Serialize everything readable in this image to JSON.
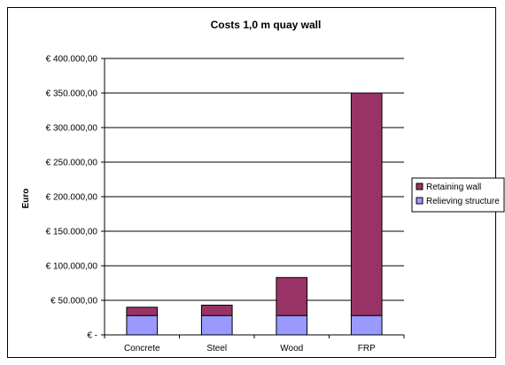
{
  "chart_data": {
    "type": "bar",
    "stacked": true,
    "title": "Costs 1,0 m quay wall",
    "xlabel": "",
    "ylabel": "Euro",
    "categories": [
      "Concrete",
      "Steel",
      "Wood",
      "FRP"
    ],
    "series": [
      {
        "name": "Relieving structure",
        "color": "#9999ff",
        "values": [
          28000,
          28000,
          28000,
          28000
        ]
      },
      {
        "name": "Retaining wall",
        "color": "#993366",
        "values": [
          12000,
          15000,
          55000,
          322000
        ]
      }
    ],
    "ylim": [
      0,
      400000
    ],
    "yticks": [
      0,
      50000,
      100000,
      150000,
      200000,
      250000,
      300000,
      350000,
      400000
    ],
    "ytick_labels": [
      "€ -",
      "€ 50.000,00",
      "€ 100.000,00",
      "€ 150.000,00",
      "€ 200.000,00",
      "€ 250.000,00",
      "€ 300.000,00",
      "€ 350.000,00",
      "€ 400.000,00"
    ],
    "grid": true,
    "legend": "right"
  }
}
